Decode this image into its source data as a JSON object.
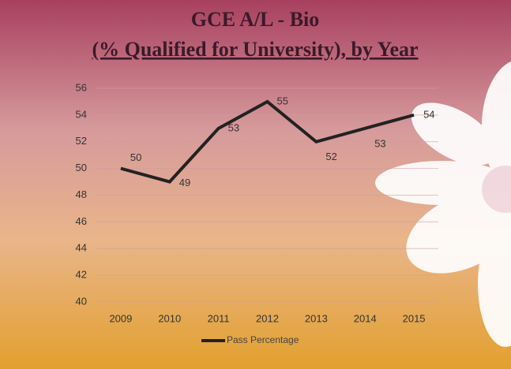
{
  "chart_data": {
    "type": "line",
    "title": [
      "GCE A/L - Bio",
      "(% Qualified for University), by Year"
    ],
    "categories": [
      "2009",
      "2010",
      "2011",
      "2012",
      "2013",
      "2014",
      "2015"
    ],
    "series": [
      {
        "name": "Pass Percentage",
        "color": "#222222",
        "values": [
          50,
          49,
          53,
          55,
          52,
          53,
          54
        ]
      }
    ],
    "ylim": [
      40,
      56
    ],
    "yticks": [
      40,
      42,
      44,
      46,
      48,
      50,
      52,
      54,
      56
    ],
    "grid": true,
    "legend": "bottom"
  }
}
